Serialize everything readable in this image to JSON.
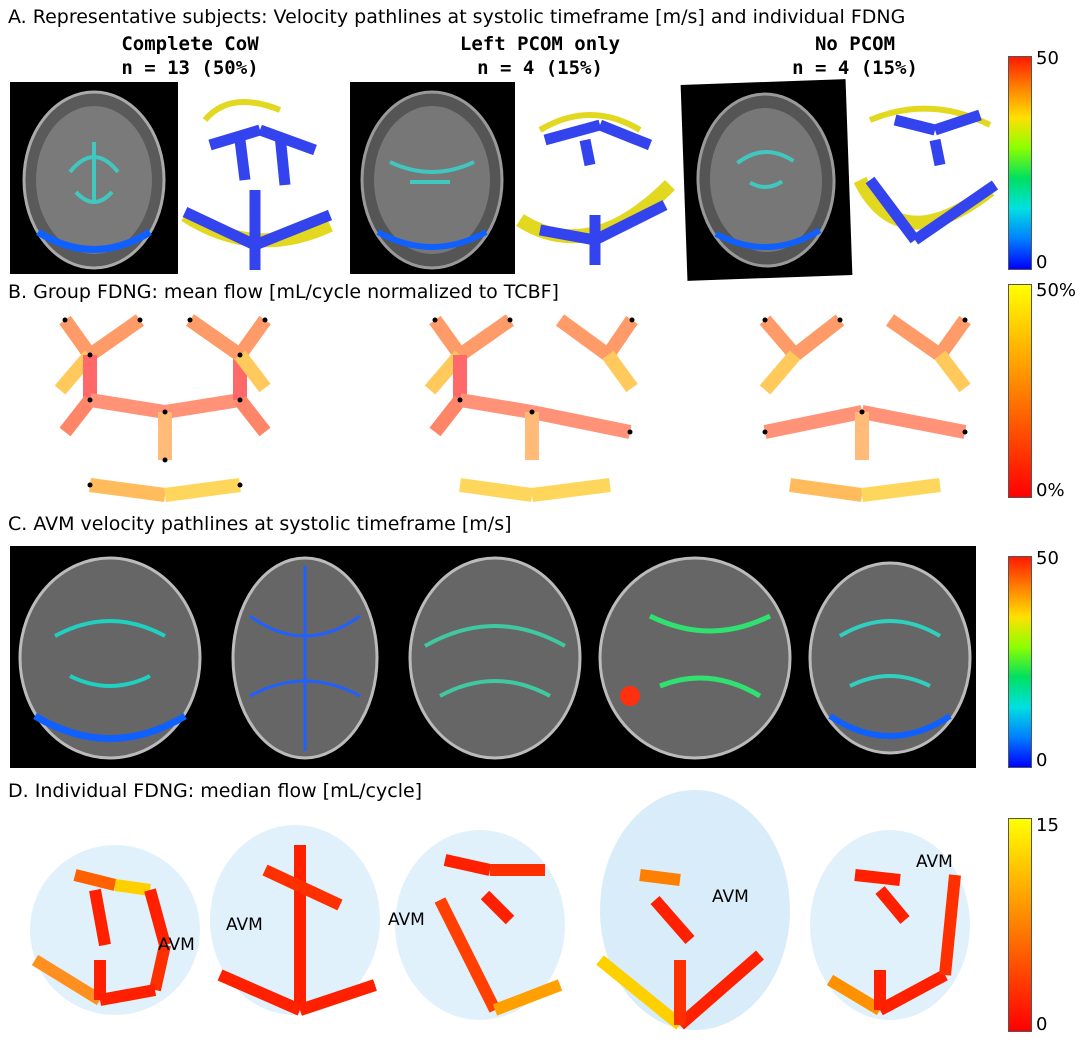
{
  "sections": {
    "a": "A. Representative subjects: Velocity pathlines at systolic timeframe [m/s] and individual FDNG",
    "b": "B. Group FDNG: mean flow [mL/cycle normalized to TCBF]",
    "c": "C. AVM velocity pathlines at systolic timeframe [m/s]",
    "d": "D. Individual FDNG: median flow [mL/cycle]"
  },
  "groups": [
    {
      "name": "Complete CoW",
      "count": "n = 13 (50%)"
    },
    {
      "name": "Left PCOM only",
      "count": "n = 4 (15%)"
    },
    {
      "name": "No PCOM",
      "count": "n = 4 (15%)"
    }
  ],
  "colorbars": {
    "a": {
      "max": "50",
      "min": "0",
      "colormap": "jet"
    },
    "b": {
      "max": "50%",
      "min": "0%",
      "colormap": "red-yellow"
    },
    "c": {
      "max": "50",
      "min": "0",
      "colormap": "jet"
    },
    "d": {
      "max": "15",
      "min": "0",
      "colormap": "red-yellow"
    }
  },
  "avm_label": "AVM",
  "colors": {
    "network": "#3344ee",
    "vessel": "#e0d81a",
    "hot_low": "#ff2000",
    "hot_high": "#ffff00"
  }
}
